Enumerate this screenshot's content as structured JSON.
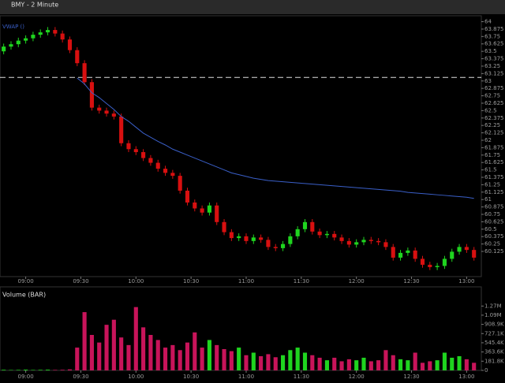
{
  "chart_data": [
    {
      "type": "candlestick",
      "title": "BMY - 2 Minute",
      "x": [
        528,
        532,
        536,
        540,
        544,
        548,
        552,
        556,
        560,
        564,
        568,
        572,
        576,
        580,
        584,
        588,
        592,
        596,
        600,
        604,
        608,
        612,
        616,
        620,
        624,
        628,
        632,
        636,
        640,
        644,
        648,
        652,
        656,
        660,
        664,
        668,
        672,
        676,
        680,
        684,
        688,
        692,
        696,
        700,
        704,
        708,
        712,
        716,
        720,
        724,
        728,
        732,
        736,
        740,
        744,
        748,
        752,
        756,
        760,
        764,
        768,
        772,
        776,
        780,
        784
      ],
      "open": [
        63.5,
        63.58,
        63.62,
        63.68,
        63.72,
        63.78,
        63.82,
        63.86,
        63.8,
        63.7,
        63.52,
        63.3,
        62.98,
        62.55,
        62.5,
        62.45,
        62.4,
        61.95,
        61.85,
        61.8,
        61.7,
        61.62,
        61.52,
        61.45,
        61.4,
        61.15,
        60.95,
        60.85,
        60.78,
        60.9,
        60.62,
        60.45,
        60.35,
        60.38,
        60.3,
        60.36,
        60.32,
        60.2,
        60.18,
        60.25,
        60.38,
        60.5,
        60.62,
        60.46,
        60.4,
        60.42,
        60.36,
        60.3,
        60.24,
        60.28,
        60.32,
        60.3,
        60.28,
        60.2,
        60.02,
        60.1,
        60.14,
        60.0,
        59.9,
        59.86,
        59.88,
        60.0,
        60.12,
        60.2,
        60.15
      ],
      "high": [
        63.63,
        63.67,
        63.73,
        63.77,
        63.83,
        63.87,
        63.91,
        63.91,
        63.85,
        63.75,
        63.57,
        63.35,
        63.03,
        62.6,
        62.55,
        62.5,
        62.45,
        62.0,
        61.9,
        61.85,
        61.75,
        61.67,
        61.57,
        61.5,
        61.45,
        61.2,
        61.0,
        60.9,
        60.95,
        60.95,
        60.67,
        60.5,
        60.43,
        60.43,
        60.41,
        60.41,
        60.37,
        60.25,
        60.3,
        60.43,
        60.55,
        60.67,
        60.67,
        60.51,
        60.47,
        60.47,
        60.41,
        60.35,
        60.33,
        60.37,
        60.37,
        60.35,
        60.33,
        60.25,
        60.15,
        60.19,
        60.19,
        60.05,
        59.95,
        59.93,
        60.05,
        60.17,
        60.25,
        60.25,
        60.2
      ],
      "low": [
        63.45,
        63.53,
        63.57,
        63.63,
        63.67,
        63.73,
        63.77,
        63.75,
        63.65,
        63.47,
        63.25,
        62.93,
        62.5,
        62.45,
        62.4,
        62.35,
        61.9,
        61.8,
        61.75,
        61.65,
        61.57,
        61.47,
        61.4,
        61.35,
        61.1,
        60.9,
        60.8,
        60.73,
        60.73,
        60.57,
        60.4,
        60.3,
        60.3,
        60.25,
        60.25,
        60.27,
        60.15,
        60.13,
        60.13,
        60.2,
        60.33,
        60.45,
        60.41,
        60.35,
        60.35,
        60.31,
        60.25,
        60.19,
        60.19,
        60.23,
        60.25,
        60.23,
        60.15,
        59.97,
        59.97,
        60.05,
        59.95,
        59.85,
        59.81,
        59.81,
        59.83,
        59.95,
        60.07,
        60.1,
        59.97
      ],
      "close": [
        63.58,
        63.62,
        63.68,
        63.72,
        63.78,
        63.82,
        63.86,
        63.8,
        63.7,
        63.52,
        63.3,
        62.98,
        62.55,
        62.5,
        62.45,
        62.4,
        61.95,
        61.85,
        61.8,
        61.7,
        61.62,
        61.52,
        61.45,
        61.4,
        61.15,
        60.95,
        60.85,
        60.78,
        60.9,
        60.62,
        60.45,
        60.35,
        60.38,
        60.3,
        60.36,
        60.32,
        60.2,
        60.18,
        60.25,
        60.38,
        60.5,
        60.62,
        60.46,
        60.4,
        60.42,
        60.36,
        60.3,
        60.24,
        60.28,
        60.32,
        60.3,
        60.28,
        60.2,
        60.02,
        60.1,
        60.14,
        60.0,
        59.9,
        59.86,
        59.88,
        60.0,
        60.12,
        60.2,
        60.15,
        60.02
      ],
      "up_color": "#1fd41f",
      "down_color": "#d81010",
      "series": [
        {
          "name": "VWAP ()",
          "color": "#3a5fc8",
          "values": [
            null,
            null,
            null,
            null,
            null,
            null,
            null,
            null,
            null,
            null,
            63.05,
            62.95,
            62.8,
            62.72,
            62.62,
            62.52,
            62.4,
            62.32,
            62.22,
            62.12,
            62.05,
            61.98,
            61.92,
            61.85,
            61.8,
            61.75,
            61.7,
            61.65,
            61.6,
            61.55,
            61.5,
            61.45,
            61.42,
            61.39,
            61.36,
            61.34,
            61.32,
            61.31,
            61.3,
            61.29,
            61.28,
            61.27,
            61.26,
            61.25,
            61.24,
            61.23,
            61.22,
            61.21,
            61.2,
            61.19,
            61.18,
            61.17,
            61.16,
            61.15,
            61.14,
            61.12,
            61.11,
            61.1,
            61.09,
            61.08,
            61.07,
            61.06,
            61.05,
            61.04,
            61.02
          ]
        }
      ],
      "hline": 63.06,
      "xlim": [
        526,
        788
      ],
      "ylim": [
        59.7,
        64.1
      ],
      "xticks": [
        {
          "value": 540,
          "label": "09:00"
        },
        {
          "value": 570,
          "label": "09:30"
        },
        {
          "value": 600,
          "label": "10:00"
        },
        {
          "value": 630,
          "label": "10:30"
        },
        {
          "value": 660,
          "label": "11:00"
        },
        {
          "value": 690,
          "label": "11:30"
        },
        {
          "value": 720,
          "label": "12:00"
        },
        {
          "value": 750,
          "label": "12:30"
        },
        {
          "value": 780,
          "label": "13:00"
        }
      ],
      "yticks": [
        60.125,
        60.25,
        60.375,
        60.5,
        60.625,
        60.75,
        60.875,
        61,
        61.125,
        61.25,
        61.375,
        61.5,
        61.625,
        61.75,
        61.875,
        62,
        62.125,
        62.25,
        62.375,
        62.5,
        62.625,
        62.75,
        62.875,
        63,
        63.125,
        63.25,
        63.375,
        63.5,
        63.625,
        63.75,
        63.875,
        64
      ]
    },
    {
      "type": "bar",
      "title": "Volume (BAR)",
      "values": [
        12000,
        8000,
        10000,
        15000,
        9000,
        11000,
        14000,
        10000,
        12000,
        20000,
        450000,
        1150000,
        700000,
        550000,
        900000,
        1000000,
        650000,
        500000,
        1250000,
        850000,
        700000,
        600000,
        450000,
        500000,
        400000,
        550000,
        750000,
        450000,
        600000,
        500000,
        420000,
        380000,
        450000,
        300000,
        350000,
        280000,
        320000,
        260000,
        300000,
        400000,
        450000,
        350000,
        300000,
        250000,
        200000,
        250000,
        180000,
        220000,
        200000,
        250000,
        180000,
        200000,
        400000,
        300000,
        220000,
        200000,
        350000,
        150000,
        180000,
        200000,
        350000,
        250000,
        280000,
        220000,
        150000
      ],
      "ylim": [
        0,
        1400000
      ],
      "yticks": [
        0,
        {
          "value": 181800,
          "label": "181.8K"
        },
        {
          "value": 363600,
          "label": "363.6K"
        },
        {
          "value": 545400,
          "label": "545.4K"
        },
        {
          "value": 727100,
          "label": "727.1K"
        },
        {
          "value": 908900,
          "label": "908.9K"
        },
        {
          "value": 1090000,
          "label": "1.09M"
        },
        {
          "value": 1270000,
          "label": "1.27M"
        }
      ]
    }
  ]
}
